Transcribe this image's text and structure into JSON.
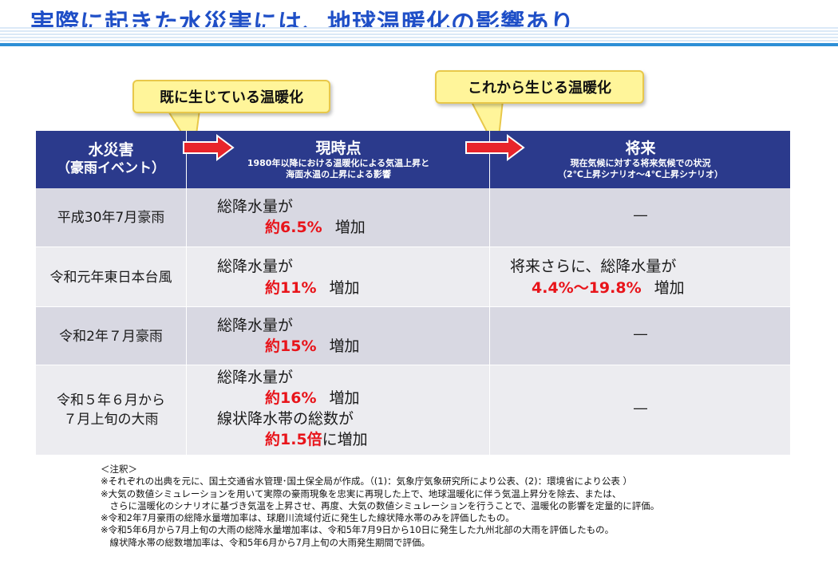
{
  "title": "実際に起きた水災害には、地球温暖化の影響あり",
  "callouts": {
    "existing": "既に生じている温暖化",
    "future": "これから生じる温暖化"
  },
  "header": {
    "col1_main": "水災害",
    "col1_sub": "（豪雨イベント）",
    "col2_main": "現時点",
    "col2_sub1": "1980年以降における温暖化による気温上昇と",
    "col2_sub2": "海面水温の上昇による影響",
    "col3_main": "将来",
    "col3_sub1": "現在気候に対する将来気候での状況",
    "col3_sub2": "（2℃上昇シナリオ～4℃上昇シナリオ）"
  },
  "rows": [
    {
      "name": "平成30年7月豪雨",
      "now_label": "総降水量が",
      "now_value": "約6.5%",
      "now_suffix": "増加",
      "future": "―"
    },
    {
      "name": "令和元年東日本台風",
      "now_label": "総降水量が",
      "now_value": "約11%",
      "now_suffix": "増加",
      "future_label": "将来さらに、総降水量が",
      "future_value": "4.4%～19.8%",
      "future_suffix": "増加"
    },
    {
      "name": "令和2年７月豪雨",
      "now_label": "総降水量が",
      "now_value": "約15%",
      "now_suffix": "増加",
      "future": "―"
    },
    {
      "name_line1": "令和５年６月から",
      "name_line2": "７月上旬の大雨",
      "now_label": "総降水量が",
      "now_value": "約16%",
      "now_suffix": "増加",
      "now_label2": "線状降水帯の総数が",
      "now_value2": "約1.5倍",
      "now_suffix2": "に増加",
      "future": "―"
    }
  ],
  "notes": [
    "＜注釈＞",
    "※それぞれの出典を元に、国土交通省水管理･国土保全局が作成。（(1)：気象庁気象研究所により公表、(2)：環境省により公表 ）",
    "※大気の数値シミュレーションを用いて実際の豪雨現象を忠実に再現した上で、地球温暖化に伴う気温上昇分を除去、または、",
    "　さらに温暖化のシナリオに基づき気温を上昇させ、再度、大気の数値シミュレーションを行うことで、温暖化の影響を定量的に評価。",
    "※令和2年7月豪雨の総降水量増加率は、球磨川流域付近に発生した線状降水帯のみを評価したもの。",
    "※令和5年6月から7月上旬の大雨の総降水量増加率は、令和5年7月9日から10日に発生した九州北部の大雨を評価したもの。",
    "　線状降水帯の総数増加率は、令和5年6月から7月上旬の大雨発生期間で評価。"
  ]
}
